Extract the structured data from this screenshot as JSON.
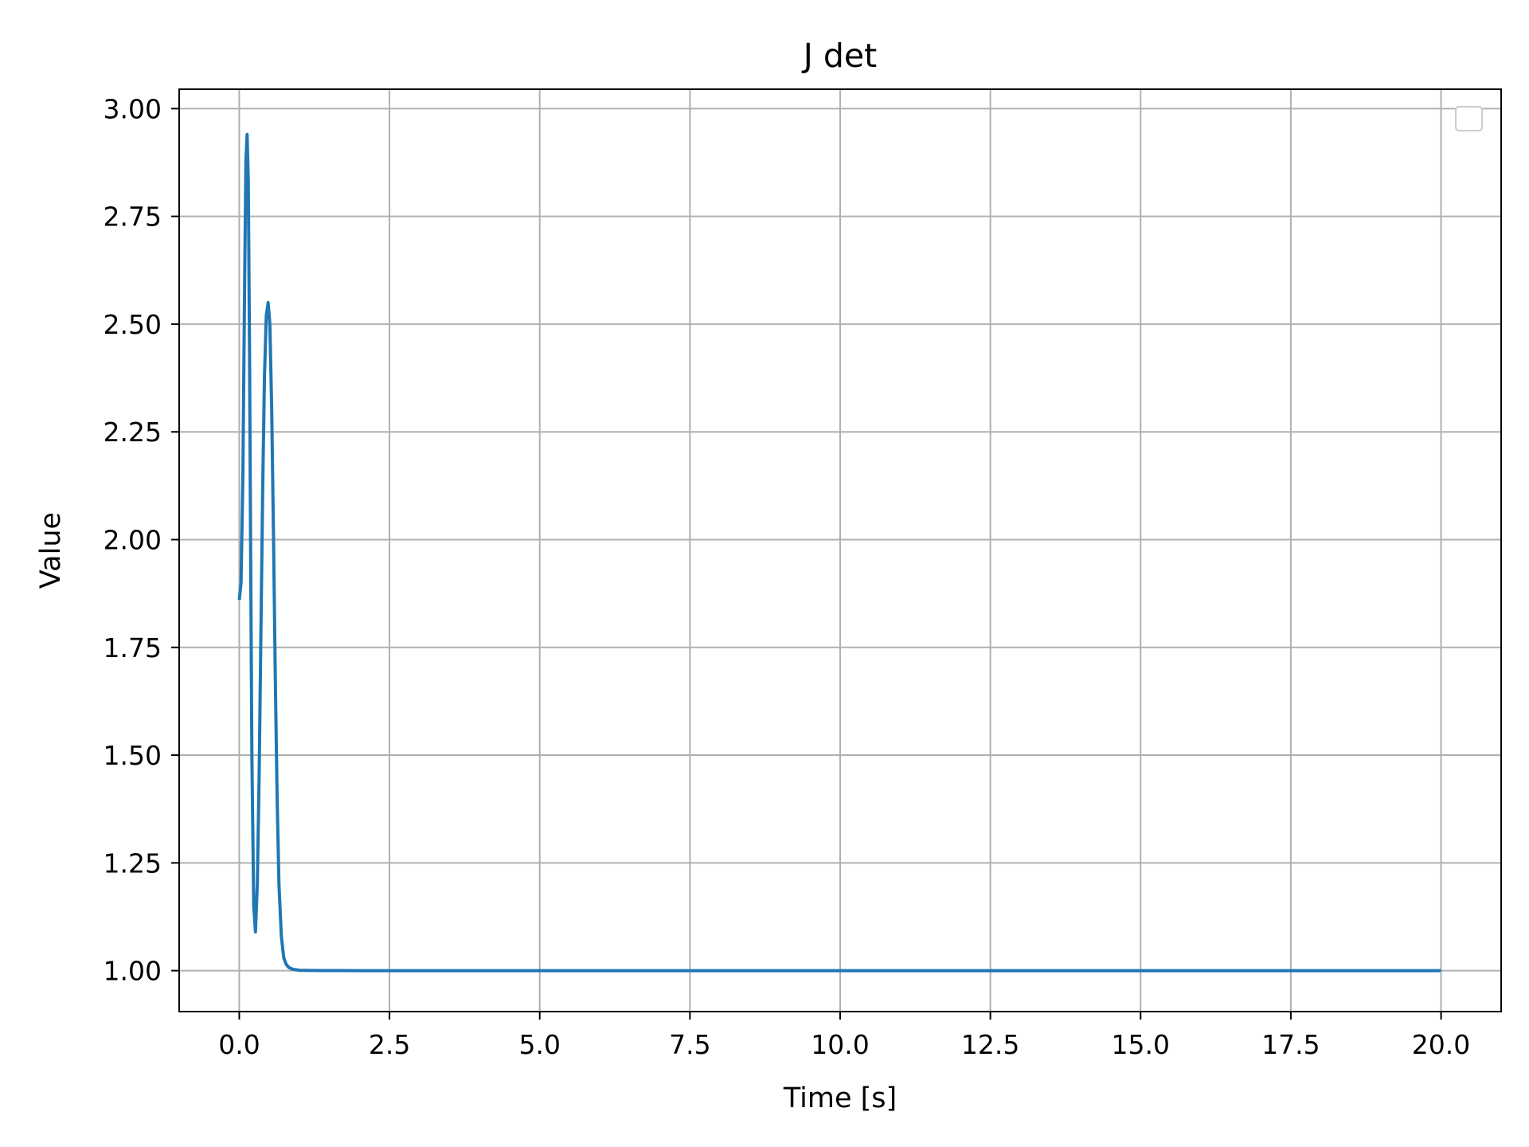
{
  "chart_data": {
    "type": "line",
    "title": "J det",
    "xlabel": "Time [s]",
    "ylabel": "Value",
    "xlim": [
      -1.0,
      21.0
    ],
    "ylim": [
      0.905,
      3.045
    ],
    "xticks": [
      0.0,
      2.5,
      5.0,
      7.5,
      10.0,
      12.5,
      15.0,
      17.5,
      20.0
    ],
    "xtick_labels": [
      "0.0",
      "2.5",
      "5.0",
      "7.5",
      "10.0",
      "12.5",
      "15.0",
      "17.5",
      "20.0"
    ],
    "yticks": [
      1.0,
      1.25,
      1.5,
      1.75,
      2.0,
      2.25,
      2.5,
      2.75,
      3.0
    ],
    "ytick_labels": [
      "1.00",
      "1.25",
      "1.50",
      "1.75",
      "2.00",
      "2.25",
      "2.50",
      "2.75",
      "3.00"
    ],
    "grid": true,
    "legend": {
      "placement": "upper right",
      "entries": []
    },
    "series": [
      {
        "color": "#1f77b4",
        "x": [
          0.0,
          0.03,
          0.06,
          0.09,
          0.11,
          0.13,
          0.15,
          0.17,
          0.19,
          0.21,
          0.24,
          0.27,
          0.3,
          0.33,
          0.36,
          0.39,
          0.42,
          0.45,
          0.48,
          0.51,
          0.54,
          0.57,
          0.6,
          0.63,
          0.66,
          0.7,
          0.74,
          0.78,
          0.82,
          0.86,
          0.9,
          0.95,
          1.0,
          1.1,
          1.2,
          1.4,
          1.7,
          2.0,
          3.0,
          5.0,
          7.5,
          10.0,
          12.5,
          15.0,
          17.5,
          20.0
        ],
        "y": [
          1.86,
          1.9,
          2.15,
          2.6,
          2.88,
          2.94,
          2.83,
          2.45,
          1.95,
          1.5,
          1.15,
          1.09,
          1.2,
          1.45,
          1.78,
          2.12,
          2.38,
          2.52,
          2.55,
          2.5,
          2.3,
          2.0,
          1.68,
          1.4,
          1.2,
          1.08,
          1.03,
          1.015,
          1.008,
          1.005,
          1.003,
          1.002,
          1.001,
          1.0005,
          1.0003,
          1.0002,
          1.0001,
          1.0,
          1.0,
          1.0,
          1.0,
          1.0,
          1.0,
          1.0,
          1.0,
          1.0
        ]
      }
    ]
  }
}
